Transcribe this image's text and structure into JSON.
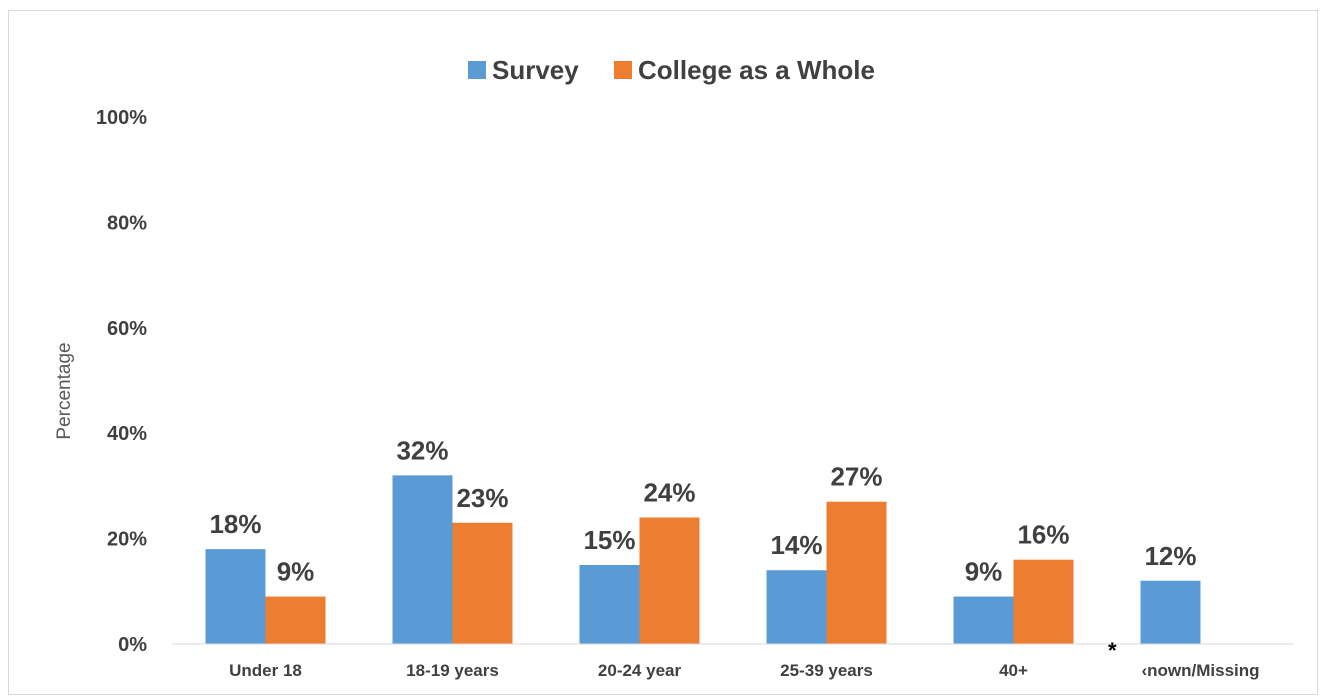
{
  "chart_data": {
    "type": "bar",
    "categories": [
      "Under 18",
      "18-19 years",
      "20-24 year",
      "25-39 years",
      "40+",
      "Unknown/Missing"
    ],
    "category_labels_shown": [
      "Under 18",
      "18-19 years",
      "20-24 year",
      "25-39 years",
      "40+",
      "‹nown/Missing"
    ],
    "series": [
      {
        "name": "Survey",
        "values": [
          18,
          32,
          15,
          14,
          9,
          12
        ],
        "labels": [
          "18%",
          "32%",
          "15%",
          "14%",
          "9%",
          "12%"
        ]
      },
      {
        "name": "College as a Whole",
        "values": [
          9,
          23,
          24,
          27,
          16,
          null
        ],
        "labels": [
          "9%",
          "23%",
          "24%",
          "27%",
          "16%",
          ""
        ]
      }
    ],
    "colors": {
      "Survey": "#5b9bd5",
      "College as a Whole": "#ed7d31"
    },
    "title": "",
    "xlabel": "",
    "ylabel": "Percentage",
    "ylim": [
      0,
      100
    ],
    "yticks": [
      "0%",
      "20%",
      "40%",
      "60%",
      "80%",
      "100%"
    ],
    "grid": false,
    "legend": "top-center",
    "annotation": "*"
  }
}
